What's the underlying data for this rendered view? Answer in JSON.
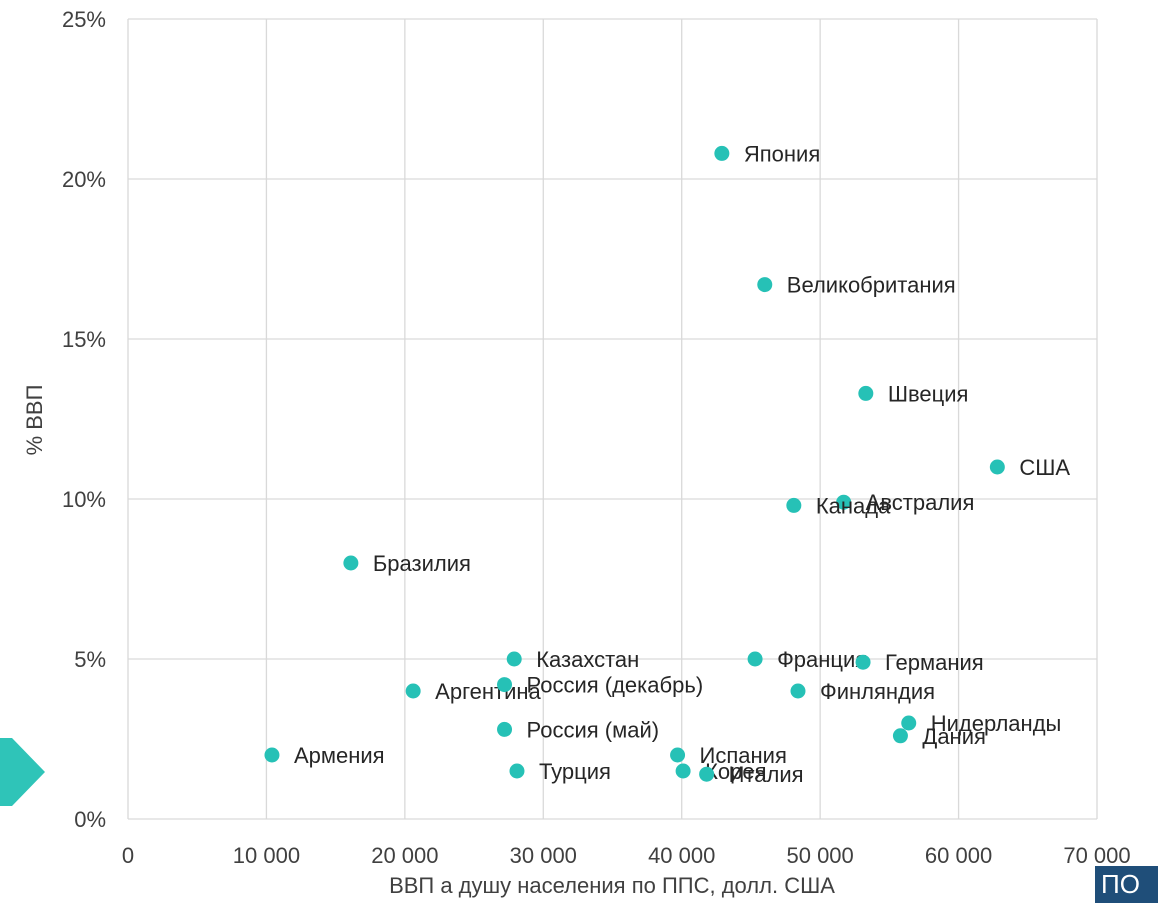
{
  "chart_data": {
    "type": "scatter",
    "title": "",
    "xlabel": "ВВП а душу населения по ППС, долл. США",
    "ylabel": "% ВВП",
    "xlim": [
      0,
      70000
    ],
    "ylim": [
      0,
      0.25
    ],
    "x_ticks": [
      0,
      10000,
      20000,
      30000,
      40000,
      50000,
      60000,
      70000
    ],
    "x_tick_labels": [
      "0",
      "10 000",
      "20 000",
      "30 000",
      "40 000",
      "50 000",
      "60 000",
      "70 000"
    ],
    "y_ticks": [
      0,
      0.05,
      0.1,
      0.15,
      0.2,
      0.25
    ],
    "y_tick_labels": [
      "0%",
      "5%",
      "10%",
      "15%",
      "20%",
      "25%"
    ],
    "grid": true,
    "marker_color": "#26c1b6",
    "points": [
      {
        "label": "Япония",
        "x": 42900,
        "y": 0.208
      },
      {
        "label": "Великобритания",
        "x": 46000,
        "y": 0.167
      },
      {
        "label": "Швеция",
        "x": 53300,
        "y": 0.133
      },
      {
        "label": "США",
        "x": 62800,
        "y": 0.11
      },
      {
        "label": "Австралия",
        "x": 51700,
        "y": 0.099
      },
      {
        "label": "Канада",
        "x": 48100,
        "y": 0.098
      },
      {
        "label": "Бразилия",
        "x": 16100,
        "y": 0.08
      },
      {
        "label": "Казахстан",
        "x": 27900,
        "y": 0.05
      },
      {
        "label": "Франция",
        "x": 45300,
        "y": 0.05
      },
      {
        "label": "Германия",
        "x": 53100,
        "y": 0.049
      },
      {
        "label": "Аргентина",
        "x": 20600,
        "y": 0.04
      },
      {
        "label": "Россия (декабрь)",
        "x": 27200,
        "y": 0.042
      },
      {
        "label": "Финляндия",
        "x": 48400,
        "y": 0.04
      },
      {
        "label": "Нидерланды",
        "x": 56400,
        "y": 0.03
      },
      {
        "label": "Дания",
        "x": 55800,
        "y": 0.026
      },
      {
        "label": "Россия (май)",
        "x": 27200,
        "y": 0.028
      },
      {
        "label": "Армения",
        "x": 10400,
        "y": 0.02
      },
      {
        "label": "Испания",
        "x": 39700,
        "y": 0.02
      },
      {
        "label": "Турция",
        "x": 28100,
        "y": 0.015
      },
      {
        "label": "Корея",
        "x": 40100,
        "y": 0.015
      },
      {
        "label": "Италия",
        "x": 41800,
        "y": 0.014
      }
    ]
  },
  "decor": {
    "arrow_color": "#2fc4b8",
    "badge_color": "#1f4e79",
    "badge_text": "ПО"
  }
}
